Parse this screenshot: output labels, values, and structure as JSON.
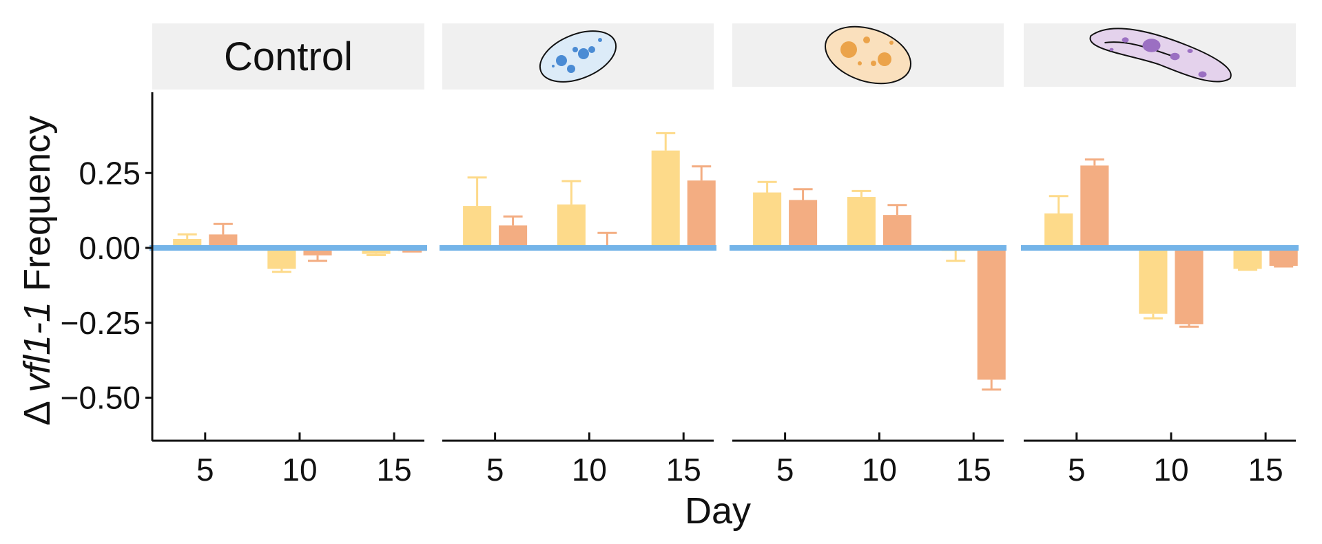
{
  "chart_data": {
    "type": "bar",
    "xlabel": "Day",
    "ylabel_prefix": "Δ ",
    "ylabel_italic": "vfl1-1",
    "ylabel_suffix": " Frequency",
    "yticks": [
      "0.25",
      "0.00",
      "−0.25",
      "−0.50"
    ],
    "ytick_values": [
      0.25,
      0.0,
      -0.25,
      -0.5
    ],
    "ylim": [
      -0.5,
      0.42
    ],
    "xticks": [
      5,
      10,
      15
    ],
    "xlim": [
      2.2,
      16.6
    ],
    "bar_width": 1.5,
    "colors": {
      "series_a": "#fdda8a",
      "series_b": "#f3ad82",
      "zero_line": "#74b4e8",
      "strip_bg": "#f0f0f0",
      "axis": "#111111"
    },
    "panels": [
      {
        "strip_label": "Control",
        "strip_icon": "",
        "bars": [
          {
            "day": 5,
            "series": "a",
            "value": 0.03,
            "err": 0.015
          },
          {
            "day": 5,
            "series": "b",
            "value": 0.045,
            "err": 0.035
          },
          {
            "day": 10,
            "series": "a",
            "value": -0.07,
            "err": 0.01
          },
          {
            "day": 10,
            "series": "b",
            "value": -0.025,
            "err": 0.018
          },
          {
            "day": 15,
            "series": "a",
            "value": -0.02,
            "err": 0.004
          },
          {
            "day": 15,
            "series": "b",
            "value": -0.01,
            "err": 0.002
          }
        ]
      },
      {
        "strip_label": "",
        "strip_icon": "blue-cell-icon",
        "bars": [
          {
            "day": 5,
            "series": "a",
            "value": 0.14,
            "err": 0.095
          },
          {
            "day": 5,
            "series": "b",
            "value": 0.075,
            "err": 0.03
          },
          {
            "day": 10,
            "series": "a",
            "value": 0.145,
            "err": 0.078
          },
          {
            "day": 10,
            "series": "b",
            "value": 0.005,
            "err": 0.045
          },
          {
            "day": 15,
            "series": "a",
            "value": 0.325,
            "err": 0.058
          },
          {
            "day": 15,
            "series": "b",
            "value": 0.225,
            "err": 0.047
          }
        ]
      },
      {
        "strip_label": "",
        "strip_icon": "orange-cell-icon",
        "bars": [
          {
            "day": 5,
            "series": "a",
            "value": 0.185,
            "err": 0.035
          },
          {
            "day": 5,
            "series": "b",
            "value": 0.16,
            "err": 0.036
          },
          {
            "day": 10,
            "series": "a",
            "value": 0.17,
            "err": 0.02
          },
          {
            "day": 10,
            "series": "b",
            "value": 0.11,
            "err": 0.033
          },
          {
            "day": 15,
            "series": "a",
            "value": -0.01,
            "err": 0.033
          },
          {
            "day": 15,
            "series": "b",
            "value": -0.44,
            "err": 0.033
          }
        ]
      },
      {
        "strip_label": "",
        "strip_icon": "purple-cell-icon",
        "bars": [
          {
            "day": 5,
            "series": "a",
            "value": 0.115,
            "err": 0.058
          },
          {
            "day": 5,
            "series": "b",
            "value": 0.275,
            "err": 0.02
          },
          {
            "day": 10,
            "series": "a",
            "value": -0.22,
            "err": 0.015
          },
          {
            "day": 10,
            "series": "b",
            "value": -0.255,
            "err": 0.008
          },
          {
            "day": 15,
            "series": "a",
            "value": -0.07,
            "err": 0.003
          },
          {
            "day": 15,
            "series": "b",
            "value": -0.06,
            "err": 0.002
          }
        ]
      }
    ]
  }
}
